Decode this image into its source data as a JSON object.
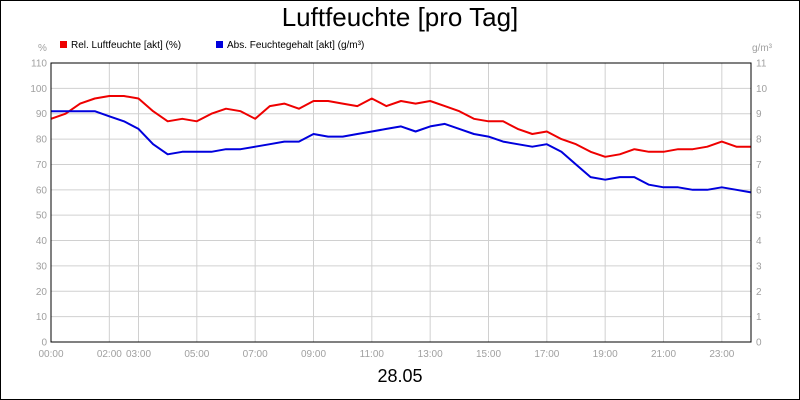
{
  "chart_data": {
    "type": "line",
    "title": "Luftfeuchte [pro Tag]",
    "xlabel": "28.05",
    "y_unit_left": "%",
    "y_unit_right": "g/m³",
    "ylim_left": [
      0,
      110
    ],
    "ylim_right": [
      0,
      11
    ],
    "yticks_left": [
      "0",
      "10",
      "20",
      "30",
      "40",
      "50",
      "60",
      "70",
      "80",
      "90",
      "100",
      "110"
    ],
    "yticks_right": [
      "0",
      "1",
      "2",
      "3",
      "4",
      "5",
      "6",
      "7",
      "8",
      "9",
      "10",
      "11"
    ],
    "x_range_hours": [
      0,
      24
    ],
    "xticks": [
      {
        "h": 0,
        "label": "00:00"
      },
      {
        "h": 2,
        "label": "02:00"
      },
      {
        "h": 3,
        "label": "03:00"
      },
      {
        "h": 5,
        "label": "05:00"
      },
      {
        "h": 7,
        "label": "07:00"
      },
      {
        "h": 9,
        "label": "09:00"
      },
      {
        "h": 11,
        "label": "11:00"
      },
      {
        "h": 13,
        "label": "13:00"
      },
      {
        "h": 15,
        "label": "15:00"
      },
      {
        "h": 17,
        "label": "17:00"
      },
      {
        "h": 19,
        "label": "19:00"
      },
      {
        "h": 21,
        "label": "21:00"
      },
      {
        "h": 23,
        "label": "23:00"
      }
    ],
    "grid": true,
    "legend_position": "top-left",
    "series": [
      {
        "name": "Rel. Luftfeuchte [akt] (%)",
        "color": "#ee0000",
        "axis": "left",
        "x": [
          0,
          0.5,
          1,
          1.5,
          2,
          2.5,
          3,
          3.5,
          4,
          4.5,
          5,
          5.5,
          6,
          6.5,
          7,
          7.5,
          8,
          8.5,
          9,
          9.5,
          10,
          10.5,
          11,
          11.5,
          12,
          12.5,
          13,
          13.5,
          14,
          14.5,
          15,
          15.5,
          16,
          16.5,
          17,
          17.5,
          18,
          18.5,
          19,
          19.5,
          20,
          20.5,
          21,
          21.5,
          22,
          22.5,
          23,
          23.5,
          24
        ],
        "values": [
          88,
          90,
          94,
          96,
          97,
          97,
          96,
          91,
          87,
          88,
          87,
          90,
          92,
          91,
          88,
          93,
          94,
          92,
          95,
          95,
          94,
          93,
          96,
          93,
          95,
          94,
          95,
          93,
          91,
          88,
          87,
          87,
          84,
          82,
          83,
          80,
          78,
          75,
          73,
          74,
          76,
          75,
          75,
          76,
          76,
          77,
          79,
          77,
          77
        ]
      },
      {
        "name": "Abs. Feuchtegehalt [akt] (g/m³)",
        "color": "#0000dd",
        "axis": "right",
        "x": [
          0,
          0.5,
          1,
          1.5,
          2,
          2.5,
          3,
          3.5,
          4,
          4.5,
          5,
          5.5,
          6,
          6.5,
          7,
          7.5,
          8,
          8.5,
          9,
          9.5,
          10,
          10.5,
          11,
          11.5,
          12,
          12.5,
          13,
          13.5,
          14,
          14.5,
          15,
          15.5,
          16,
          16.5,
          17,
          17.5,
          18,
          18.5,
          19,
          19.5,
          20,
          20.5,
          21,
          21.5,
          22,
          22.5,
          23,
          23.5,
          24
        ],
        "values": [
          9.1,
          9.1,
          9.1,
          9.1,
          8.9,
          8.7,
          8.4,
          7.8,
          7.4,
          7.5,
          7.5,
          7.5,
          7.6,
          7.6,
          7.7,
          7.8,
          7.9,
          7.9,
          8.2,
          8.1,
          8.1,
          8.2,
          8.3,
          8.4,
          8.5,
          8.3,
          8.5,
          8.6,
          8.4,
          8.2,
          8.1,
          7.9,
          7.8,
          7.7,
          7.8,
          7.5,
          7.0,
          6.5,
          6.4,
          6.5,
          6.5,
          6.2,
          6.1,
          6.1,
          6.0,
          6.0,
          6.1,
          6.0,
          5.9
        ]
      }
    ]
  }
}
